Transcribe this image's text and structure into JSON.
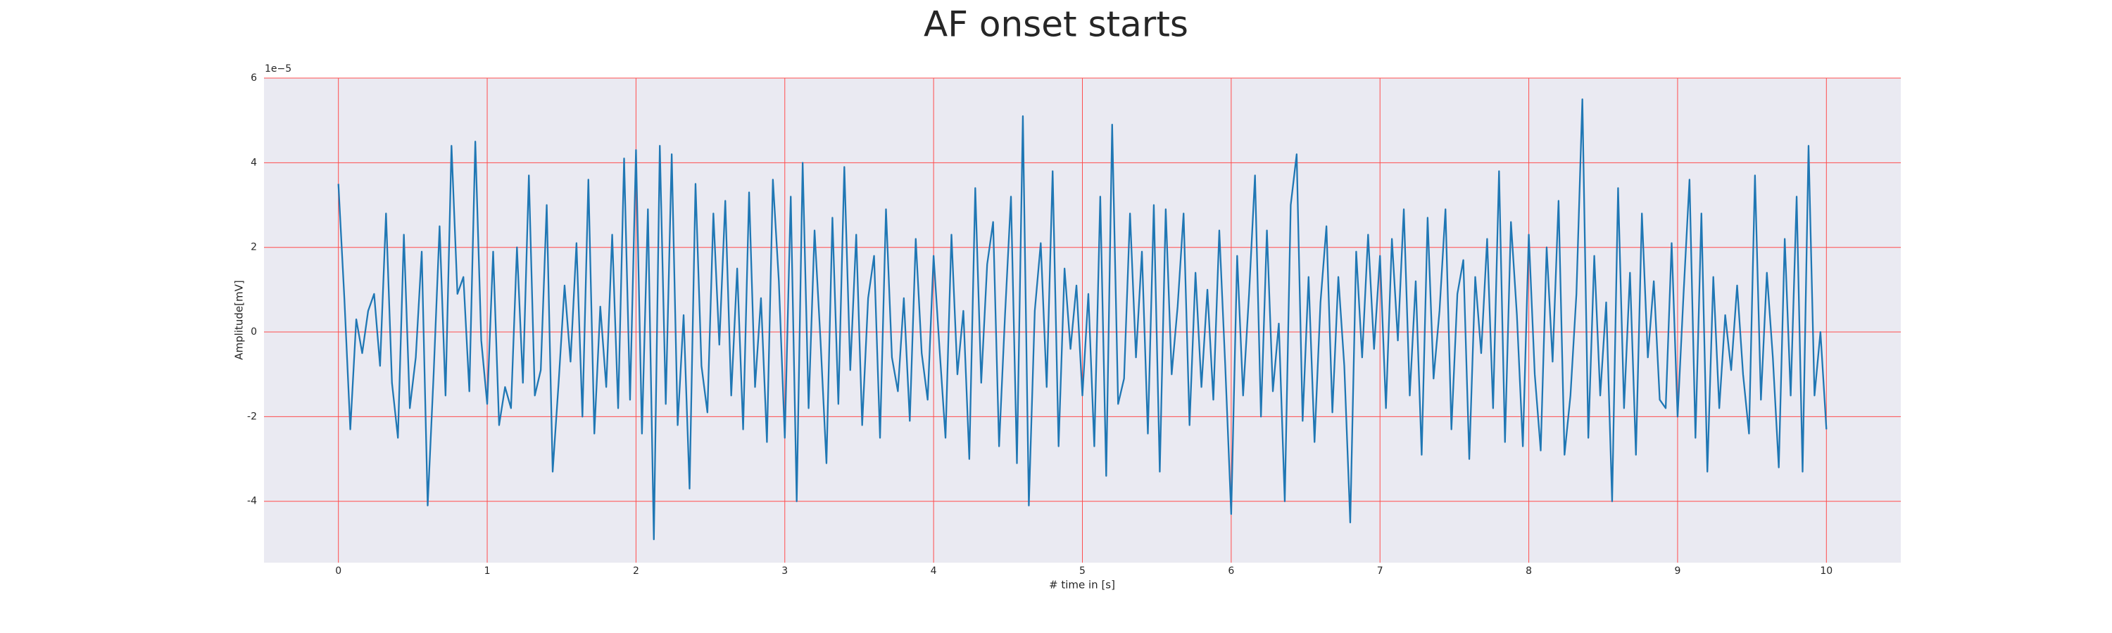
{
  "chart_data": {
    "type": "line",
    "title": "AF onset starts",
    "x_label": "# time in [s]",
    "y_label": "Amplitude[mV]",
    "y_offset_label": "1e−5",
    "xlim": [
      -0.5,
      10.5
    ],
    "ylim": [
      -5.45,
      6
    ],
    "xticks": [
      0,
      1,
      2,
      3,
      4,
      5,
      6,
      7,
      8,
      9,
      10
    ],
    "yticks": [
      -4,
      -2,
      0,
      2,
      4,
      6
    ],
    "grid": true,
    "grid_color": "#ff4d4d",
    "background": "#eaeaf2",
    "x": [
      0,
      0.04,
      0.08,
      0.12,
      0.16,
      0.2,
      0.24,
      0.28,
      0.32,
      0.36,
      0.4,
      0.44,
      0.48,
      0.52,
      0.56,
      0.6,
      0.64,
      0.68,
      0.72,
      0.76,
      0.8,
      0.84,
      0.88,
      0.92,
      0.96,
      1,
      1.04,
      1.08,
      1.12,
      1.16,
      1.2,
      1.24,
      1.28,
      1.32,
      1.36,
      1.4,
      1.44,
      1.48,
      1.52,
      1.56,
      1.6,
      1.64,
      1.68,
      1.72,
      1.76,
      1.8,
      1.84,
      1.88,
      1.92,
      1.96,
      2,
      2.04,
      2.08,
      2.12,
      2.16,
      2.2,
      2.24,
      2.28,
      2.32,
      2.36,
      2.4,
      2.44,
      2.48,
      2.52,
      2.56,
      2.6,
      2.64,
      2.68,
      2.72,
      2.76,
      2.8,
      2.84,
      2.88,
      2.92,
      2.96,
      3,
      3.04,
      3.08,
      3.12,
      3.16,
      3.2,
      3.24,
      3.28,
      3.32,
      3.36,
      3.4,
      3.44,
      3.48,
      3.52,
      3.56,
      3.6,
      3.64,
      3.68,
      3.72,
      3.76,
      3.8,
      3.84,
      3.88,
      3.92,
      3.96,
      4,
      4.04,
      4.08,
      4.12,
      4.16,
      4.2,
      4.24,
      4.28,
      4.32,
      4.36,
      4.4,
      4.44,
      4.48,
      4.52,
      4.56,
      4.6,
      4.64,
      4.68,
      4.72,
      4.76,
      4.8,
      4.84,
      4.88,
      4.92,
      4.96,
      5,
      5.04,
      5.08,
      5.12,
      5.16,
      5.2,
      5.24,
      5.28,
      5.32,
      5.36,
      5.4,
      5.44,
      5.48,
      5.52,
      5.56,
      5.6,
      5.64,
      5.68,
      5.72,
      5.76,
      5.8,
      5.84,
      5.88,
      5.92,
      5.96,
      6,
      6.04,
      6.08,
      6.12,
      6.16,
      6.2,
      6.24,
      6.28,
      6.32,
      6.36,
      6.4,
      6.44,
      6.48,
      6.52,
      6.56,
      6.6,
      6.64,
      6.68,
      6.72,
      6.76,
      6.8,
      6.84,
      6.88,
      6.92,
      6.96,
      7,
      7.04,
      7.08,
      7.12,
      7.16,
      7.2,
      7.24,
      7.28,
      7.32,
      7.36,
      7.4,
      7.44,
      7.48,
      7.52,
      7.56,
      7.6,
      7.64,
      7.68,
      7.72,
      7.76,
      7.8,
      7.84,
      7.88,
      7.92,
      7.96,
      8,
      8.04,
      8.08,
      8.12,
      8.16,
      8.2,
      8.24,
      8.28,
      8.32,
      8.36,
      8.4,
      8.44,
      8.48,
      8.52,
      8.56,
      8.6,
      8.64,
      8.68,
      8.72,
      8.76,
      8.8,
      8.84,
      8.88,
      8.92,
      8.96,
      9,
      9.04,
      9.08,
      9.12,
      9.16,
      9.2,
      9.24,
      9.28,
      9.32,
      9.36,
      9.4,
      9.44,
      9.48,
      9.52,
      9.56,
      9.6,
      9.64,
      9.68,
      9.72,
      9.76,
      9.8,
      9.84,
      9.88,
      9.92,
      9.96,
      10
    ],
    "series": [
      {
        "color": "#1f77b4",
        "values": [
          3.5,
          0.8,
          -2.3,
          0.3,
          -0.5,
          0.5,
          0.9,
          -0.8,
          2.8,
          -1.2,
          -2.5,
          2.3,
          -1.8,
          -0.6,
          1.9,
          -4.1,
          -1.0,
          2.5,
          -1.5,
          4.4,
          0.9,
          1.3,
          -1.4,
          4.5,
          -0.2,
          -1.7,
          1.9,
          -2.2,
          -1.3,
          -1.8,
          2.0,
          -1.2,
          3.7,
          -1.5,
          -0.9,
          3.0,
          -3.3,
          -1.2,
          1.1,
          -0.7,
          2.1,
          -2.0,
          3.6,
          -2.4,
          0.6,
          -1.3,
          2.3,
          -1.8,
          4.1,
          -1.6,
          4.3,
          -2.4,
          2.9,
          -4.9,
          4.4,
          -1.7,
          4.2,
          -2.2,
          0.4,
          -3.7,
          3.5,
          -0.8,
          -1.9,
          2.8,
          -0.3,
          3.1,
          -1.5,
          1.5,
          -2.3,
          3.3,
          -1.3,
          0.8,
          -2.6,
          3.6,
          1.2,
          -2.5,
          3.2,
          -4.0,
          4.0,
          -1.8,
          2.4,
          -0.2,
          -3.1,
          2.7,
          -1.7,
          3.9,
          -0.9,
          2.3,
          -2.2,
          0.8,
          1.8,
          -2.5,
          2.9,
          -0.6,
          -1.4,
          0.8,
          -2.1,
          2.2,
          -0.5,
          -1.6,
          1.8,
          -0.4,
          -2.5,
          2.3,
          -1.0,
          0.5,
          -3.0,
          3.4,
          -1.2,
          1.6,
          2.6,
          -2.7,
          0.4,
          3.2,
          -3.1,
          5.1,
          -4.1,
          0.5,
          2.1,
          -1.3,
          3.8,
          -2.7,
          1.5,
          -0.4,
          1.1,
          -1.5,
          0.9,
          -2.7,
          3.2,
          -3.4,
          4.9,
          -1.7,
          -1.1,
          2.8,
          -0.6,
          1.9,
          -2.4,
          3.0,
          -3.3,
          2.9,
          -1.0,
          0.6,
          2.8,
          -2.2,
          1.4,
          -1.3,
          1.0,
          -1.6,
          2.4,
          -0.8,
          -4.3,
          1.8,
          -1.5,
          0.9,
          3.7,
          -2.0,
          2.4,
          -1.4,
          0.2,
          -4.0,
          3.0,
          4.2,
          -2.1,
          1.3,
          -2.6,
          0.7,
          2.5,
          -1.9,
          1.3,
          -0.8,
          -4.5,
          1.9,
          -0.6,
          2.3,
          -0.4,
          1.8,
          -1.8,
          2.2,
          -0.2,
          2.9,
          -1.5,
          1.2,
          -2.9,
          2.7,
          -1.1,
          0.5,
          2.9,
          -2.3,
          0.9,
          1.7,
          -3.0,
          1.3,
          -0.5,
          2.2,
          -1.8,
          3.8,
          -2.6,
          2.6,
          0.4,
          -2.7,
          2.3,
          -1.0,
          -2.8,
          2.0,
          -0.7,
          3.1,
          -2.9,
          -1.5,
          0.9,
          5.5,
          -2.5,
          1.8,
          -1.5,
          0.7,
          -4.0,
          3.4,
          -1.8,
          1.4,
          -2.9,
          2.8,
          -0.6,
          1.2,
          -1.6,
          -1.8,
          2.1,
          -2.0,
          0.9,
          3.6,
          -2.5,
          2.8,
          -3.3,
          1.3,
          -1.8,
          0.4,
          -0.9,
          1.1,
          -1.0,
          -2.4,
          3.7,
          -1.6,
          1.4,
          -0.6,
          -3.2,
          2.2,
          -1.5,
          3.2,
          -3.3,
          4.4,
          -1.5,
          0.0,
          -2.3
        ]
      }
    ]
  }
}
